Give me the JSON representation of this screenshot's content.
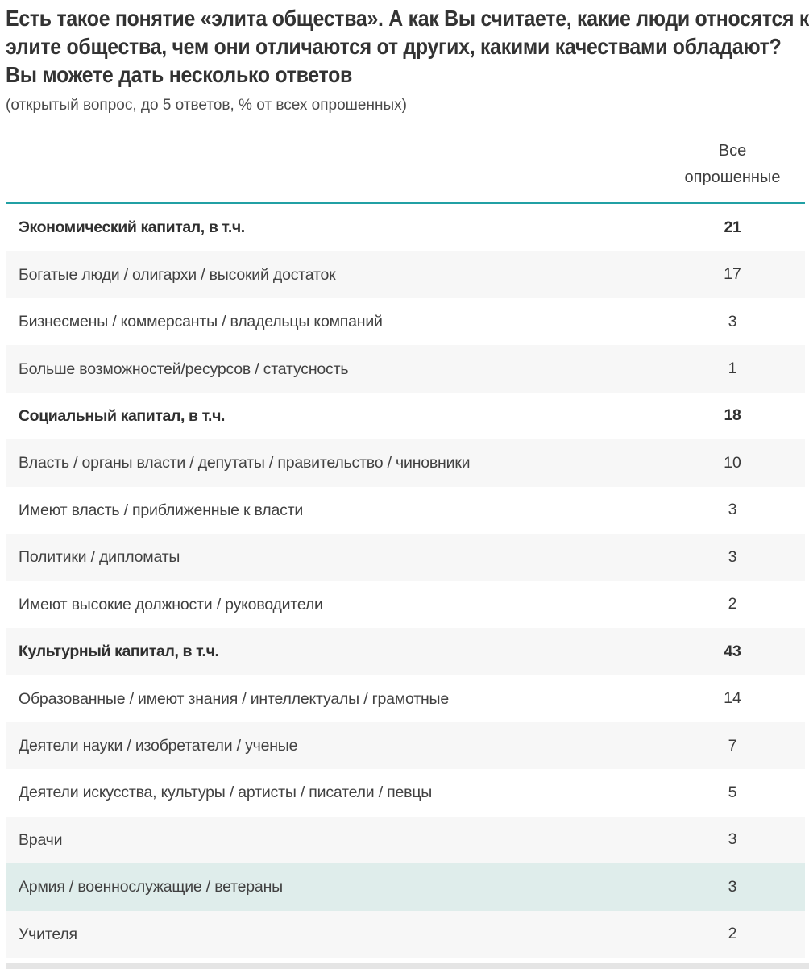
{
  "chart_data": {
    "type": "table",
    "title": "Есть такое понятие «элита общества». А как Вы считаете, какие люди относятся к элите общества, чем они отличаются от других, какими качествами обладают? Вы можете дать несколько ответов",
    "subtitle": "(открытый вопрос, до 5 ответов, % от всех опрошенных)",
    "value_column_header": "Все опрошенные",
    "values_unit": "%",
    "rows": [
      {
        "label": "Экономический капитал, в т.ч.",
        "value": 21,
        "bold": true,
        "highlighted": false
      },
      {
        "label": "Богатые люди / олигархи / высокий достаток",
        "value": 17,
        "bold": false,
        "highlighted": false
      },
      {
        "label": "Бизнесмены / коммерсанты / владельцы компаний",
        "value": 3,
        "bold": false,
        "highlighted": false
      },
      {
        "label": "Больше возможностей/ресурсов / статусность",
        "value": 1,
        "bold": false,
        "highlighted": false
      },
      {
        "label": "Социальный капитал, в т.ч.",
        "value": 18,
        "bold": true,
        "highlighted": false
      },
      {
        "label": "Власть / органы власти / депутаты / правительство / чиновники",
        "value": 10,
        "bold": false,
        "highlighted": false
      },
      {
        "label": "Имеют власть / приближенные к власти",
        "value": 3,
        "bold": false,
        "highlighted": false
      },
      {
        "label": "Политики / дипломаты",
        "value": 3,
        "bold": false,
        "highlighted": false
      },
      {
        "label": "Имеют высокие должности / руководители",
        "value": 2,
        "bold": false,
        "highlighted": false
      },
      {
        "label": "Культурный капитал, в т.ч.",
        "value": 43,
        "bold": true,
        "highlighted": false
      },
      {
        "label": "Образованные / имеют знания / интеллектуалы / грамотные",
        "value": 14,
        "bold": false,
        "highlighted": false
      },
      {
        "label": "Деятели науки / изобретатели / ученые",
        "value": 7,
        "bold": false,
        "highlighted": false
      },
      {
        "label": "Деятели искусства, культуры / артисты / писатели / певцы",
        "value": 5,
        "bold": false,
        "highlighted": false
      },
      {
        "label": "Врачи",
        "value": 3,
        "bold": false,
        "highlighted": false
      },
      {
        "label": "Армия / военнослужащие / ветераны",
        "value": 3,
        "bold": false,
        "highlighted": true
      },
      {
        "label": "Учителя",
        "value": 2,
        "bold": false,
        "highlighted": false
      }
    ]
  },
  "colors": {
    "header_underline": "#21a0a4",
    "alt_row_bg": "#f7f7f7",
    "highlight_row_bg": "#dfedeb",
    "divider": "#dcdcdc",
    "title_text": "#333333",
    "body_text": "#414141",
    "value_text": "#3a3a3a",
    "bottom_strip": "#e5e5e5"
  }
}
